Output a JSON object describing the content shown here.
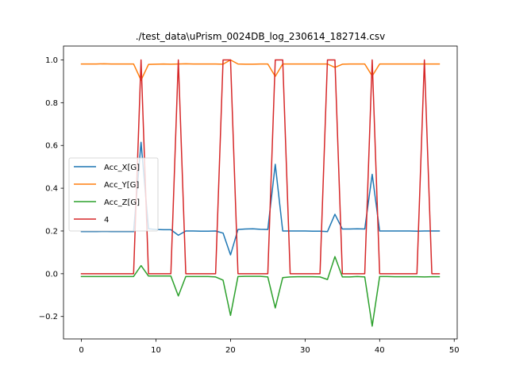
{
  "chart_data": {
    "type": "line",
    "title": "./test_data\\uPrism_0024DB_log_230614_182714.csv",
    "xlabel": "",
    "ylabel": "",
    "xlim": [
      -2.4,
      50.4
    ],
    "ylim": [
      -0.305,
      1.065
    ],
    "x_ticks": [
      0,
      10,
      20,
      30,
      40,
      50
    ],
    "y_ticks": [
      -0.2,
      0.0,
      0.2,
      0.4,
      0.6,
      0.8,
      1.0
    ],
    "x_tick_labels": [
      "0",
      "10",
      "20",
      "30",
      "40",
      "50"
    ],
    "y_tick_labels": [
      "−0.2",
      "0.0",
      "0.2",
      "0.4",
      "0.6",
      "0.8",
      "1.0"
    ],
    "grid": false,
    "legend_position": "center-left",
    "x": [
      0,
      1,
      2,
      3,
      4,
      5,
      6,
      7,
      8,
      9,
      10,
      11,
      12,
      13,
      14,
      15,
      16,
      17,
      18,
      19,
      20,
      21,
      22,
      23,
      24,
      25,
      26,
      27,
      28,
      29,
      30,
      31,
      32,
      33,
      34,
      35,
      36,
      37,
      38,
      39,
      40,
      41,
      42,
      43,
      44,
      45,
      46,
      47,
      48
    ],
    "series": [
      {
        "name": "Acc_X[G]",
        "color": "#1f77b4",
        "values": [
          0.197,
          0.197,
          0.197,
          0.198,
          0.197,
          0.197,
          0.197,
          0.197,
          0.615,
          0.21,
          0.207,
          0.206,
          0.206,
          0.18,
          0.2,
          0.2,
          0.199,
          0.199,
          0.2,
          0.19,
          0.088,
          0.207,
          0.209,
          0.21,
          0.208,
          0.207,
          0.512,
          0.2,
          0.2,
          0.2,
          0.2,
          0.199,
          0.199,
          0.197,
          0.278,
          0.209,
          0.209,
          0.21,
          0.209,
          0.465,
          0.2,
          0.2,
          0.2,
          0.2,
          0.2,
          0.199,
          0.2,
          0.2,
          0.2
        ]
      },
      {
        "name": "Acc_Y[G]",
        "color": "#ff7f0e",
        "values": [
          0.981,
          0.981,
          0.981,
          0.982,
          0.981,
          0.981,
          0.981,
          0.981,
          0.905,
          0.979,
          0.98,
          0.981,
          0.98,
          0.981,
          0.982,
          0.981,
          0.981,
          0.981,
          0.981,
          0.98,
          1.0,
          0.981,
          0.98,
          0.98,
          0.981,
          0.981,
          0.923,
          0.981,
          0.981,
          0.981,
          0.981,
          0.981,
          0.981,
          0.981,
          0.965,
          0.98,
          0.981,
          0.981,
          0.981,
          0.925,
          0.981,
          0.981,
          0.981,
          0.981,
          0.981,
          0.981,
          0.981,
          0.981,
          0.981
        ]
      },
      {
        "name": "Acc_Z[G]",
        "color": "#2ca02c",
        "values": [
          -0.013,
          -0.013,
          -0.013,
          -0.013,
          -0.013,
          -0.013,
          -0.013,
          -0.013,
          0.038,
          -0.011,
          -0.011,
          -0.011,
          -0.011,
          -0.104,
          -0.013,
          -0.013,
          -0.013,
          -0.013,
          -0.015,
          -0.03,
          -0.195,
          -0.013,
          -0.012,
          -0.012,
          -0.012,
          -0.015,
          -0.16,
          -0.018,
          -0.015,
          -0.014,
          -0.014,
          -0.014,
          -0.015,
          -0.027,
          0.08,
          -0.015,
          -0.015,
          -0.013,
          -0.015,
          -0.245,
          -0.013,
          -0.013,
          -0.014,
          -0.014,
          -0.014,
          -0.014,
          -0.015,
          -0.014,
          -0.014
        ]
      },
      {
        "name": "4",
        "color": "#d62728",
        "values": [
          0,
          0,
          0,
          0,
          0,
          0,
          0,
          0,
          1,
          0,
          0,
          0,
          0,
          1,
          0,
          0,
          0,
          0,
          0,
          1,
          1,
          0,
          0,
          0,
          0,
          0,
          1,
          1,
          0,
          0,
          0,
          0,
          0,
          1,
          1,
          0,
          0,
          0,
          0,
          1,
          0,
          0,
          0,
          0,
          0,
          0,
          1,
          0,
          0
        ]
      }
    ]
  }
}
